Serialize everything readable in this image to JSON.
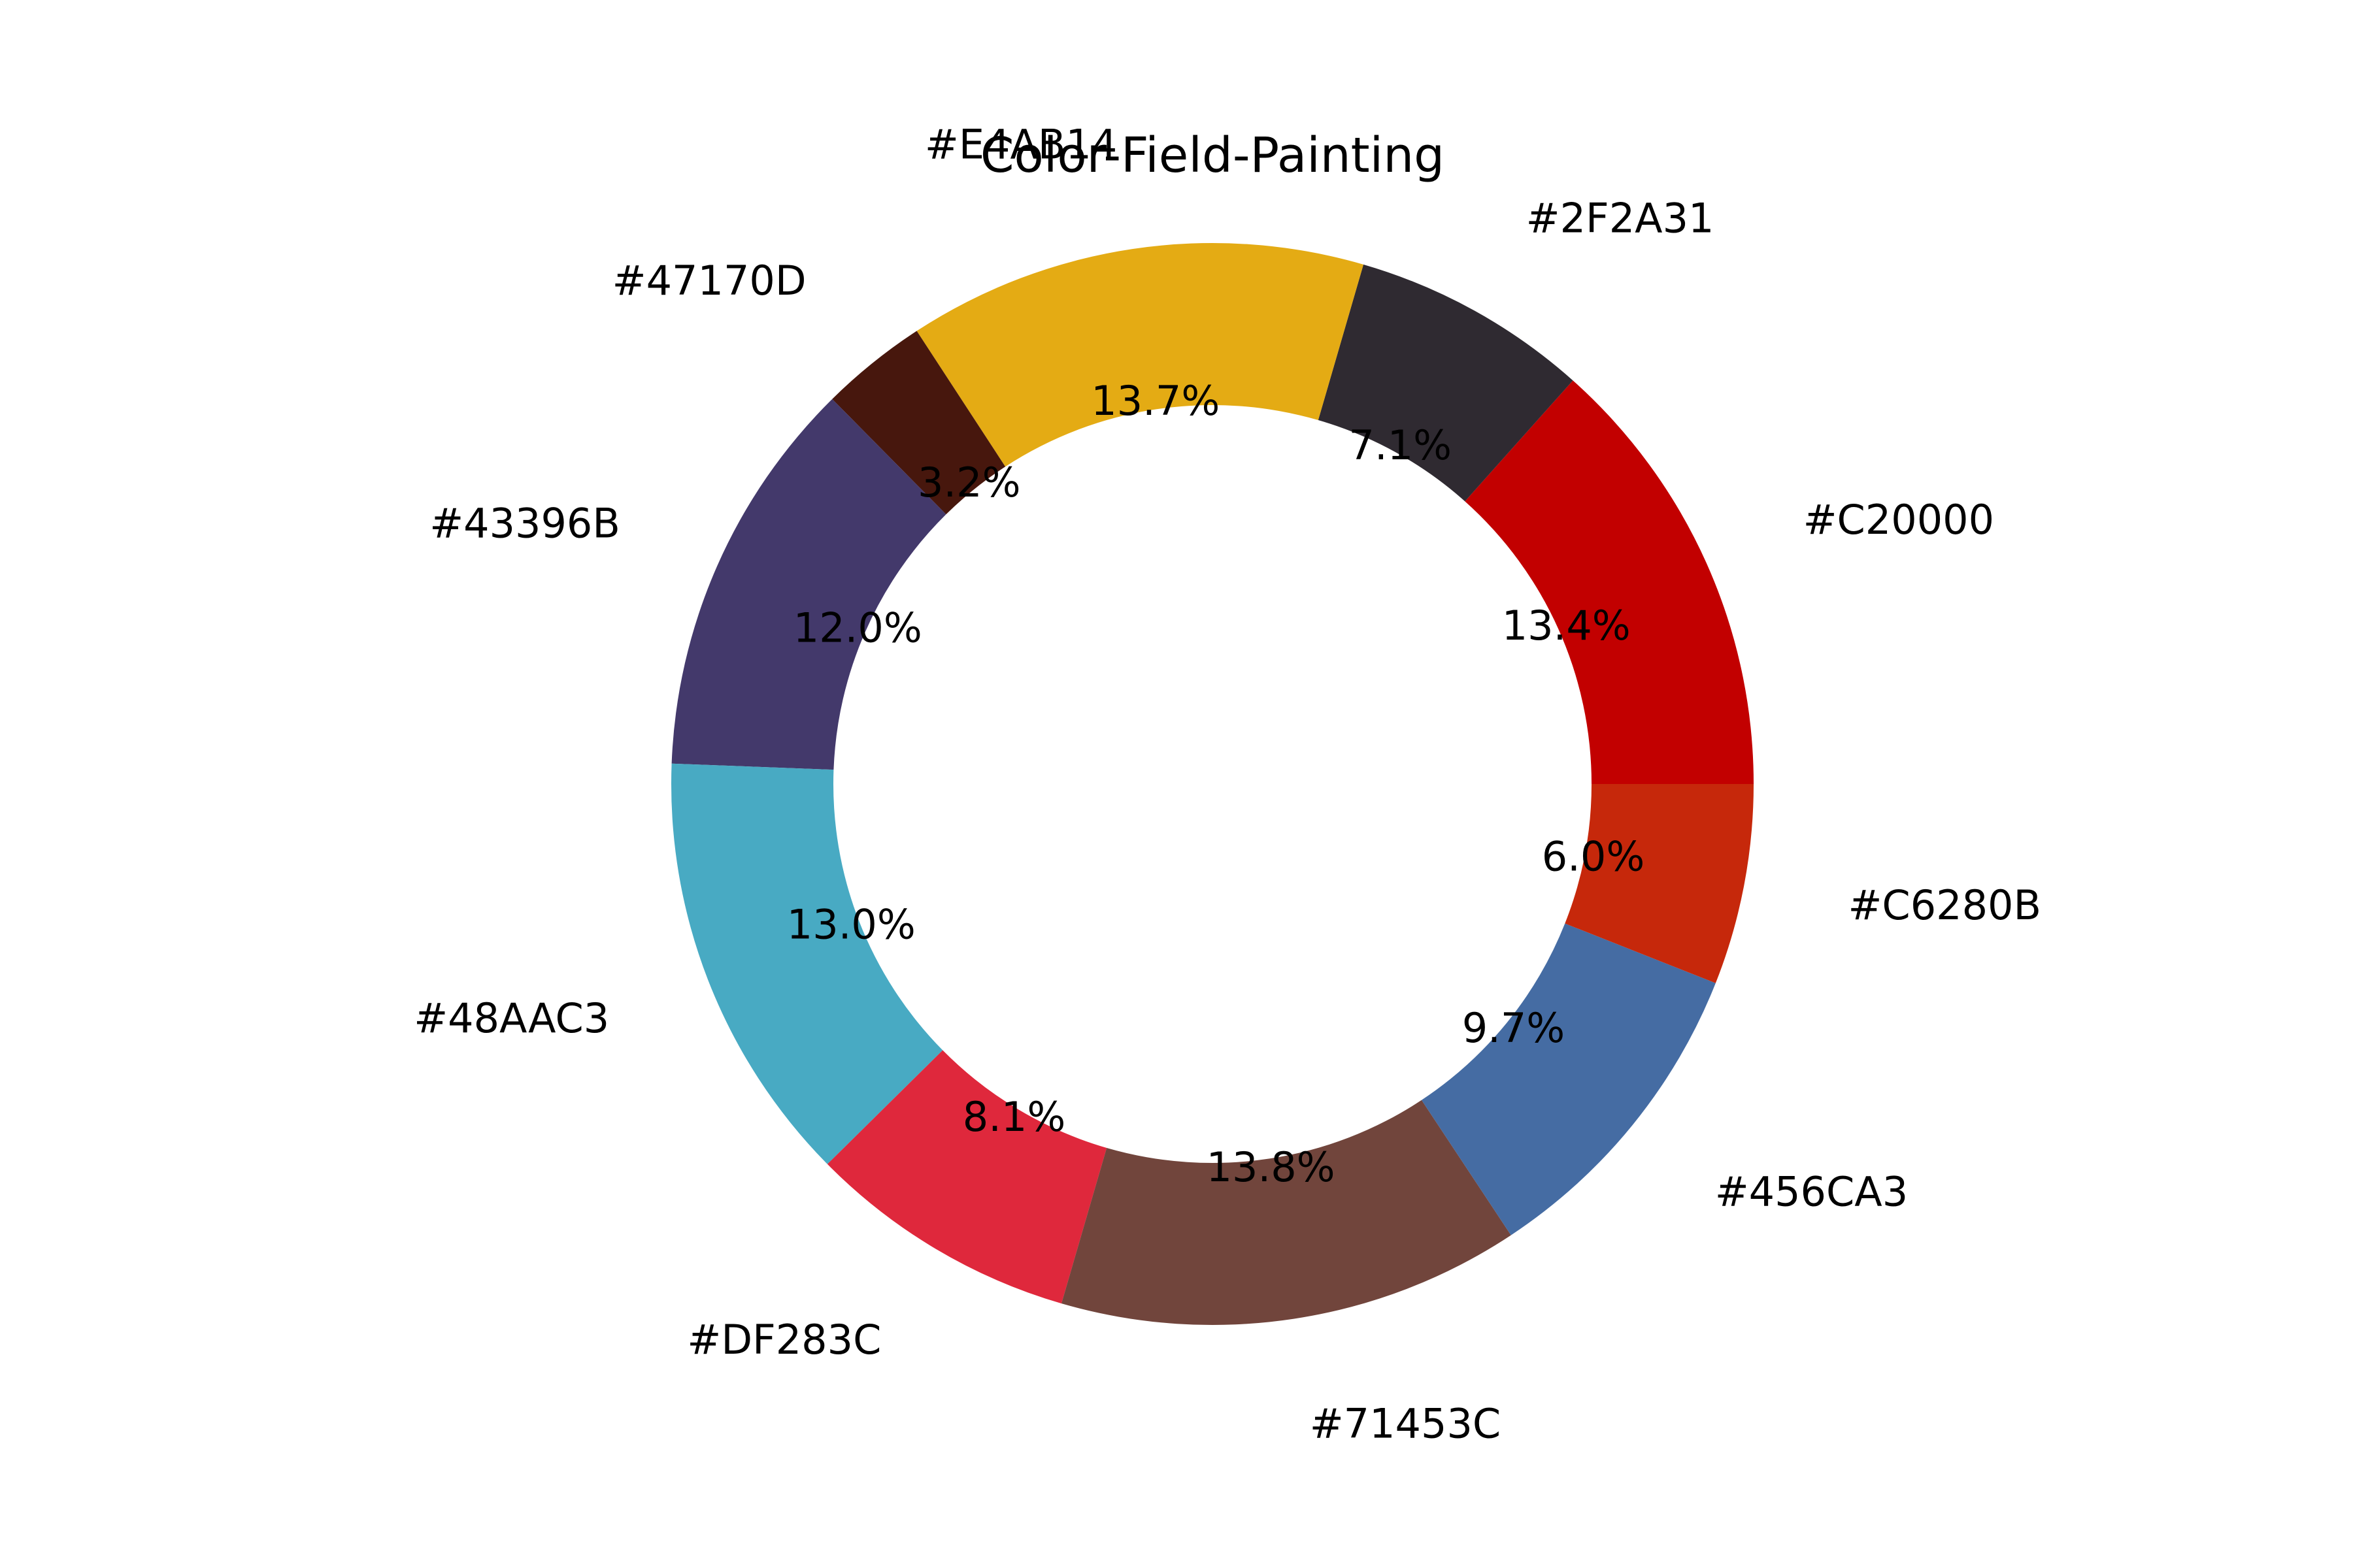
{
  "chart_data": {
    "type": "pie",
    "title": "Color-Field-Painting",
    "donut": true,
    "start_angle_deg": 0,
    "direction": "counterclockwise",
    "slices": [
      {
        "label": "#C20000",
        "value": 13.4,
        "pct_label": "13.4%",
        "color": "#C20000"
      },
      {
        "label": "#2F2A31",
        "value": 7.1,
        "pct_label": "7.1%",
        "color": "#2F2A31"
      },
      {
        "label": "#E4AB14",
        "value": 13.7,
        "pct_label": "13.7%",
        "color": "#E4AB14"
      },
      {
        "label": "#47170D",
        "value": 3.2,
        "pct_label": "3.2%",
        "color": "#47170D"
      },
      {
        "label": "#43396B",
        "value": 12.0,
        "pct_label": "12.0%",
        "color": "#43396B"
      },
      {
        "label": "#48AAC3",
        "value": 13.0,
        "pct_label": "13.0%",
        "color": "#48AAC3"
      },
      {
        "label": "#DF283C",
        "value": 8.1,
        "pct_label": "8.1%",
        "color": "#DF283C"
      },
      {
        "label": "#71453C",
        "value": 13.8,
        "pct_label": "13.8%",
        "color": "#71453C"
      },
      {
        "label": "#456CA3",
        "value": 9.7,
        "pct_label": "9.7%",
        "color": "#456CA3"
      },
      {
        "label": "#C6280B",
        "value": 6.0,
        "pct_label": "6.0%",
        "color": "#C6280B"
      }
    ]
  }
}
